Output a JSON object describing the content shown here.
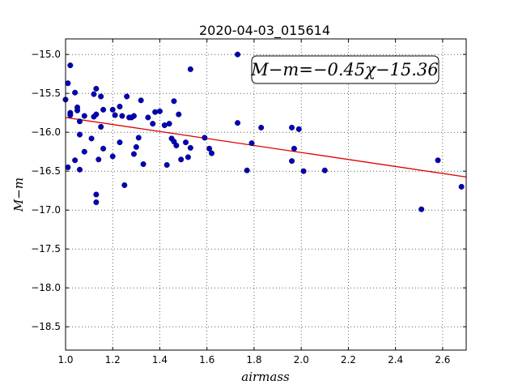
{
  "chart_data": {
    "type": "scatter",
    "title": "2020-04-03_015614",
    "xlabel": "airmass",
    "ylabel": "M−m",
    "xlim": [
      1.0,
      2.7
    ],
    "ylim": [
      -18.8,
      -14.8
    ],
    "x_ticks": [
      1.0,
      1.2,
      1.4,
      1.6,
      1.8,
      2.0,
      2.2,
      2.4,
      2.6
    ],
    "x_tick_labels": [
      "1.0",
      "1.2",
      "1.4",
      "1.6",
      "1.8",
      "2.0",
      "2.2",
      "2.4",
      "2.6"
    ],
    "y_ticks": [
      -15.0,
      -15.5,
      -16.0,
      -16.5,
      -17.0,
      -17.5,
      -18.0,
      -18.5
    ],
    "y_tick_labels": [
      "−15.0",
      "−15.5",
      "−16.0",
      "−16.5",
      "−17.0",
      "−17.5",
      "−18.0",
      "−18.5"
    ],
    "grid": true,
    "annotation": "M−m=−0.45χ−15.36",
    "fit_line": {
      "slope": -0.45,
      "intercept": -15.36,
      "color": "#dd0000"
    },
    "point_color": "#0000bb",
    "points": [
      [
        1.0,
        -15.58
      ],
      [
        1.01,
        -16.45
      ],
      [
        1.01,
        -15.37
      ],
      [
        1.02,
        -15.14
      ],
      [
        1.02,
        -15.75
      ],
      [
        1.02,
        -15.78
      ],
      [
        1.04,
        -15.49
      ],
      [
        1.04,
        -16.36
      ],
      [
        1.05,
        -15.72
      ],
      [
        1.05,
        -15.68
      ],
      [
        1.06,
        -16.03
      ],
      [
        1.06,
        -15.86
      ],
      [
        1.06,
        -16.48
      ],
      [
        1.08,
        -15.79
      ],
      [
        1.08,
        -16.25
      ],
      [
        1.11,
        -16.08
      ],
      [
        1.12,
        -15.51
      ],
      [
        1.12,
        -15.8
      ],
      [
        1.13,
        -15.44
      ],
      [
        1.13,
        -15.77
      ],
      [
        1.13,
        -16.8
      ],
      [
        1.13,
        -16.9
      ],
      [
        1.14,
        -16.35
      ],
      [
        1.15,
        -15.54
      ],
      [
        1.15,
        -15.93
      ],
      [
        1.16,
        -15.71
      ],
      [
        1.16,
        -16.21
      ],
      [
        1.2,
        -15.71
      ],
      [
        1.2,
        -16.31
      ],
      [
        1.21,
        -15.78
      ],
      [
        1.23,
        -15.67
      ],
      [
        1.23,
        -16.13
      ],
      [
        1.24,
        -15.79
      ],
      [
        1.25,
        -16.68
      ],
      [
        1.26,
        -15.54
      ],
      [
        1.27,
        -15.81
      ],
      [
        1.28,
        -15.81
      ],
      [
        1.29,
        -16.28
      ],
      [
        1.29,
        -15.79
      ],
      [
        1.3,
        -16.19
      ],
      [
        1.31,
        -16.07
      ],
      [
        1.32,
        -15.59
      ],
      [
        1.33,
        -16.41
      ],
      [
        1.35,
        -15.81
      ],
      [
        1.37,
        -15.89
      ],
      [
        1.38,
        -15.74
      ],
      [
        1.4,
        -15.73
      ],
      [
        1.42,
        -15.91
      ],
      [
        1.43,
        -16.42
      ],
      [
        1.44,
        -15.89
      ],
      [
        1.45,
        -16.08
      ],
      [
        1.46,
        -15.6
      ],
      [
        1.46,
        -16.12
      ],
      [
        1.47,
        -16.17
      ],
      [
        1.48,
        -15.77
      ],
      [
        1.49,
        -16.35
      ],
      [
        1.51,
        -16.13
      ],
      [
        1.52,
        -16.32
      ],
      [
        1.53,
        -15.19
      ],
      [
        1.53,
        -16.2
      ],
      [
        1.59,
        -16.07
      ],
      [
        1.61,
        -16.21
      ],
      [
        1.62,
        -16.27
      ],
      [
        1.73,
        -15.0
      ],
      [
        1.73,
        -15.88
      ],
      [
        1.77,
        -16.49
      ],
      [
        1.79,
        -16.14
      ],
      [
        1.83,
        -15.94
      ],
      [
        1.96,
        -16.37
      ],
      [
        1.96,
        -15.94
      ],
      [
        1.97,
        -16.21
      ],
      [
        1.99,
        -15.96
      ],
      [
        2.01,
        -16.5
      ],
      [
        2.1,
        -16.49
      ],
      [
        2.51,
        -16.99
      ],
      [
        2.58,
        -16.36
      ],
      [
        2.68,
        -16.7
      ]
    ]
  }
}
